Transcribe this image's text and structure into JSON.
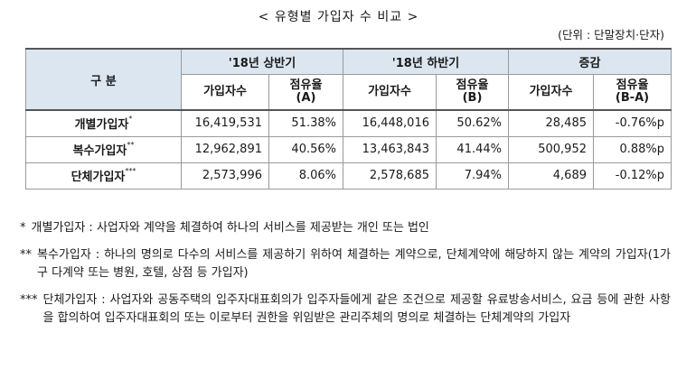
{
  "title": "< 유형별 가입자 수 비교 >",
  "unit": "(단위 : 단말장치·단자)",
  "table": {
    "corner": "구 분",
    "groups": [
      "'18년 상반기",
      "'18년 하반기",
      "증감"
    ],
    "subheaders": [
      {
        "main": "가입자수",
        "sub": ""
      },
      {
        "main": "점유율",
        "sub": "(A)"
      },
      {
        "main": "가입자수",
        "sub": ""
      },
      {
        "main": "점유율",
        "sub": "(B)"
      },
      {
        "main": "가입자수",
        "sub": ""
      },
      {
        "main": "점유율",
        "sub": "(B-A)"
      }
    ],
    "rows": [
      {
        "label": "개별가입자",
        "mark": "*",
        "cells": [
          "16,419,531",
          "51.38%",
          "16,448,016",
          "50.62%",
          "28,485",
          "-0.76%p"
        ]
      },
      {
        "label": "복수가입자",
        "mark": "**",
        "cells": [
          "12,962,891",
          "40.56%",
          "13,463,843",
          "41.44%",
          "500,952",
          "0.88%p"
        ]
      },
      {
        "label": "단체가입자",
        "mark": "***",
        "cells": [
          "2,573,996",
          "8.06%",
          "2,578,685",
          "7.94%",
          "4,689",
          "-0.12%p"
        ]
      }
    ]
  },
  "notes": [
    {
      "mark": "*",
      "text": "개별가입자 : 사업자와 계약을 체결하여 하나의 서비스를 제공받는 개인 또는 법인"
    },
    {
      "mark": "**",
      "text": "복수가입자 : 하나의 명의로 다수의 서비스를 제공하기 위하여 체결하는 계약으로, 단체계약에 해당하지 않는 계약의 가입자(1가구 다계약 또는 병원, 호텔, 상점 등 가입자)"
    },
    {
      "mark": "***",
      "text": "단체가입자 : 사업자와 공동주택의 입주자대표회의가 입주자들에게 같은 조건으로 제공할 유료방송서비스, 요금 등에 관한 사항을 합의하여 입주자대표회의 또는 이로부터 권한을 위임받은 관리주체의 명의로 체결하는 단체계약의 가입자"
    }
  ]
}
